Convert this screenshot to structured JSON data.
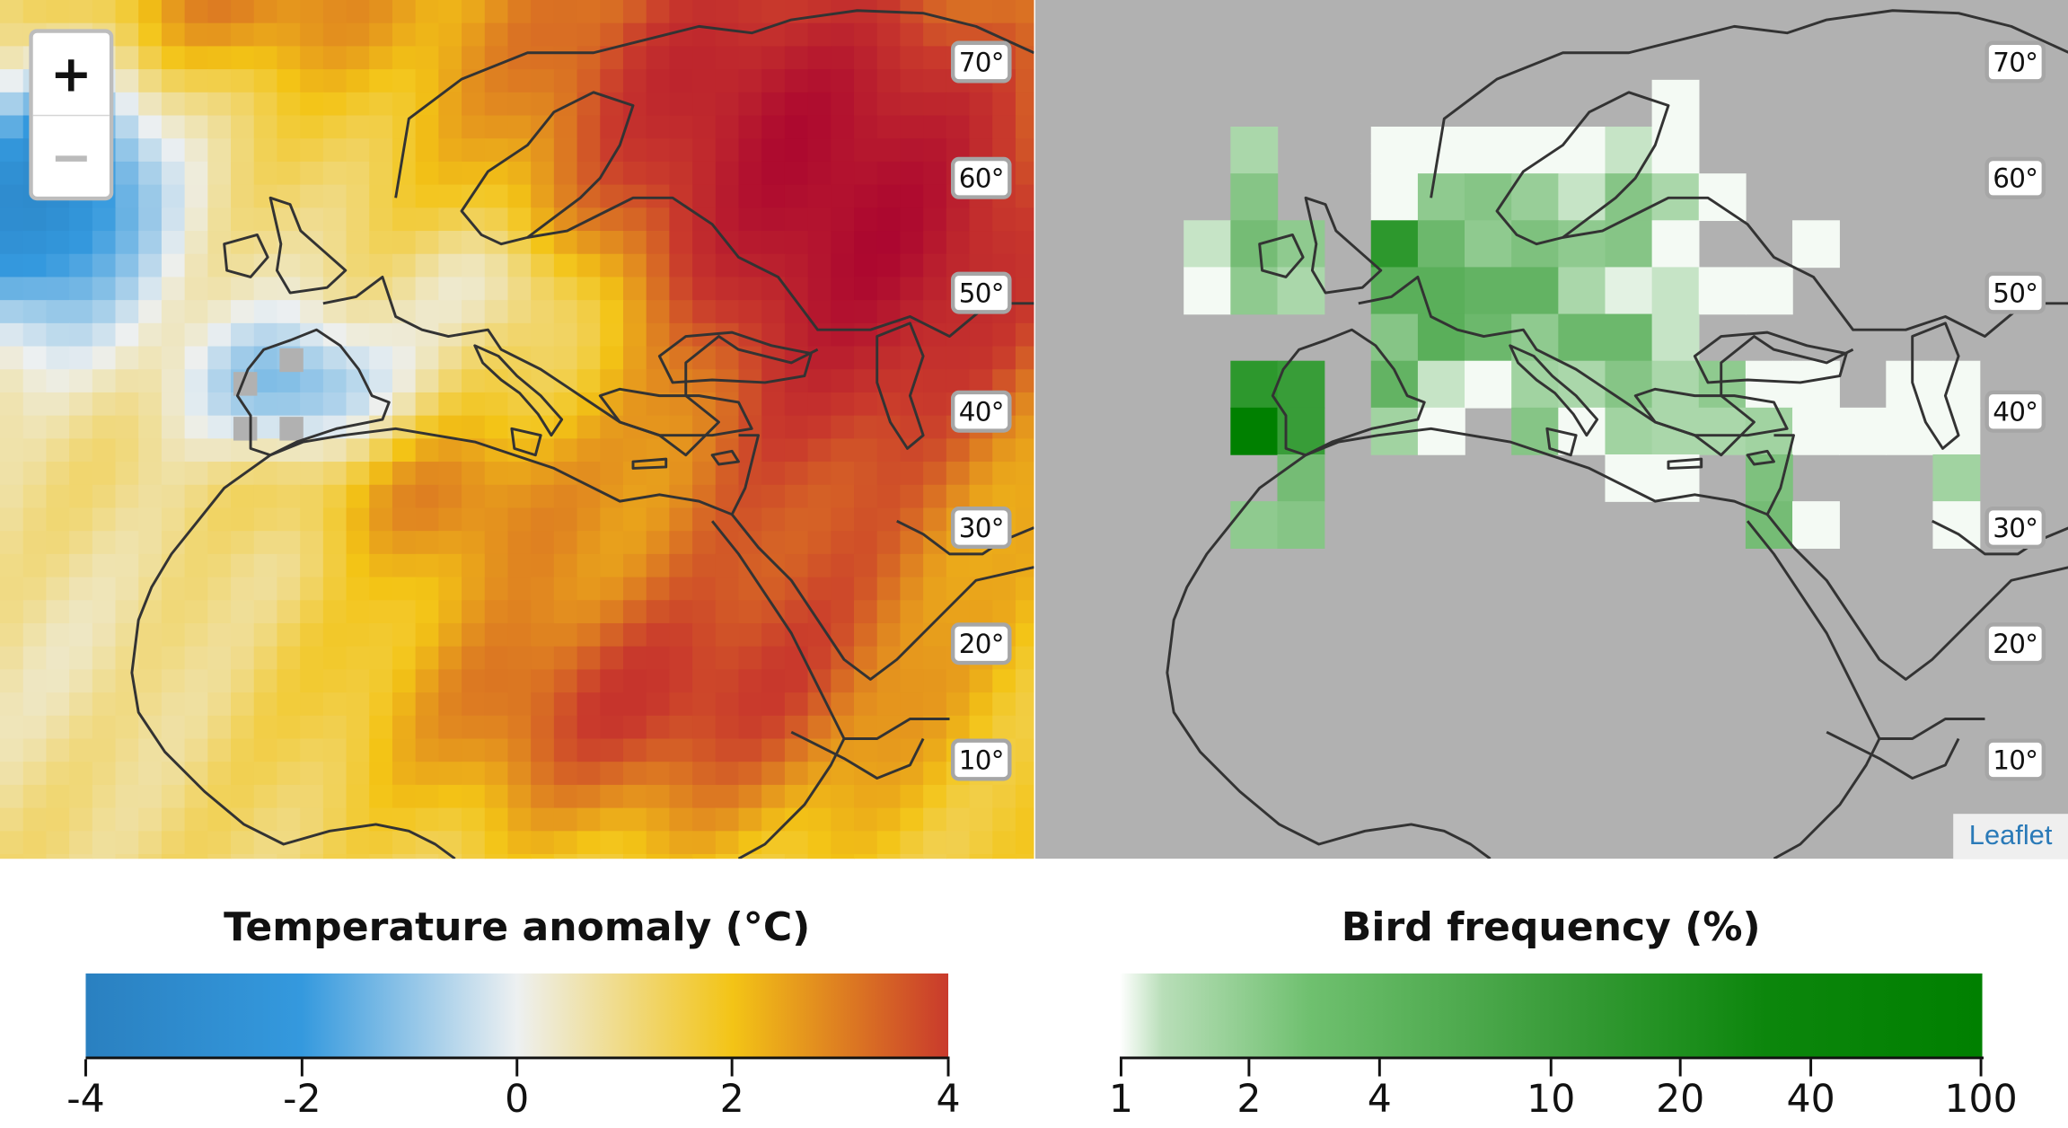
{
  "lat_labels": [
    "70°",
    "60°",
    "50°",
    "40°",
    "30°",
    "20°",
    "10°"
  ],
  "zoom": {
    "in_label": "+",
    "out_label": "−"
  },
  "attribution": "Leaflet",
  "legend_temperature": {
    "title": "Temperature anomaly (°C)",
    "ticks": [
      "-4",
      "-2",
      "0",
      "2",
      "4"
    ],
    "colors": [
      "#2a80c0",
      "#3499de",
      "#edf0f1",
      "#f3c416",
      "#c93a2c"
    ]
  },
  "legend_bird": {
    "title": "Bird frequency (%)",
    "ticks": [
      "1",
      "2",
      "4",
      "10",
      "20",
      "40",
      "100"
    ],
    "colors": [
      "#ffffff",
      "#b8deb8",
      "#6fc06f",
      "#3b9d3b",
      "#008000"
    ]
  },
  "colors": {
    "land_outline": "#333333",
    "no_data": "#b1b1b1"
  }
}
